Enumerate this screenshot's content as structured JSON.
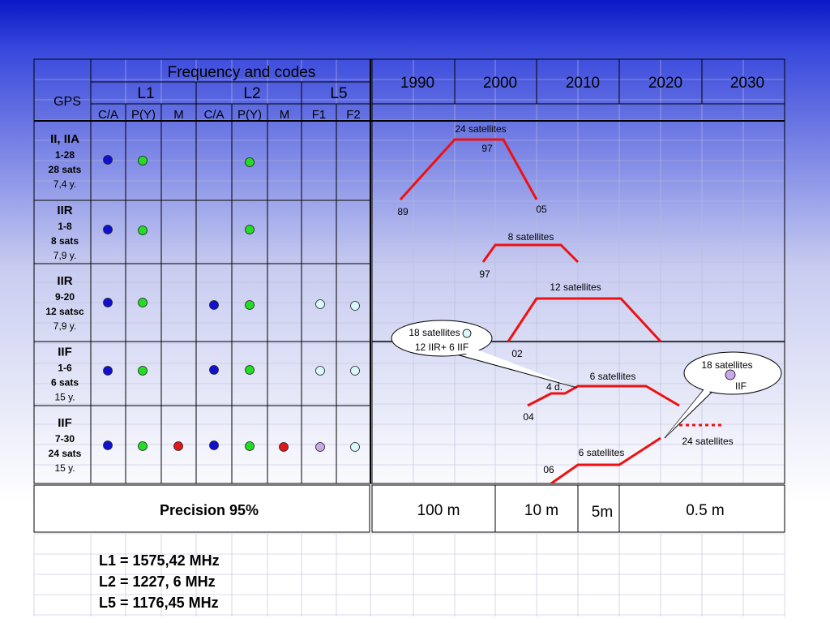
{
  "header": {
    "gps_label": "GPS",
    "freq_title": "Frequency and codes",
    "bands": [
      "L1",
      "L2",
      "L5"
    ],
    "codes": [
      "C/A",
      "P(Y)",
      "M",
      "C/A",
      "P(Y)",
      "M",
      "F1",
      "F2"
    ],
    "years": [
      "1990",
      "2000",
      "2010",
      "2020",
      "2030"
    ]
  },
  "rows": [
    {
      "name": "II, IIA",
      "range": "1-28",
      "sats": "28 sats",
      "life": "7,4 y.",
      "signals": [
        "blue",
        "green",
        null,
        null,
        "green",
        null,
        null,
        null
      ]
    },
    {
      "name": "IIR",
      "range": "1-8",
      "sats": "8 sats",
      "life": "7,9 y.",
      "signals": [
        "blue",
        "green",
        null,
        null,
        "green",
        null,
        null,
        null
      ]
    },
    {
      "name": "IIR",
      "range": "9-20",
      "sats": "12 satsc",
      "life": "7,9 y.",
      "signals": [
        "blue",
        "green",
        null,
        "blue",
        "green",
        null,
        "lightcyan",
        "lightcyan"
      ]
    },
    {
      "name": "IIF",
      "range": "1-6",
      "sats": "6 sats",
      "life": "15 y.",
      "signals": [
        "blue",
        "green",
        null,
        "blue",
        "green",
        null,
        "lightcyan",
        "lightcyan"
      ]
    },
    {
      "name": "IIF",
      "range": "7-30",
      "sats": "24 sats",
      "life": "15 y.",
      "signals": [
        "blue",
        "green",
        "red",
        "blue",
        "green",
        "red",
        "lavender",
        "lightcyan"
      ]
    }
  ],
  "precision": {
    "label": "Precision 95%",
    "values": [
      "100 m",
      "10 m",
      "5m",
      "0.5 m"
    ]
  },
  "timeline_labels": [
    {
      "text": "24 satellites"
    },
    {
      "text": "97"
    },
    {
      "text": "89"
    },
    {
      "text": "05"
    },
    {
      "text": "8 satellites"
    },
    {
      "text": "97"
    },
    {
      "text": "12 satellites"
    },
    {
      "text": "02"
    },
    {
      "text": "4 d."
    },
    {
      "text": "6 satellites"
    },
    {
      "text": "04"
    },
    {
      "text": "6 satellites"
    },
    {
      "text": "06"
    },
    {
      "text": "24 satellites"
    }
  ],
  "callouts": [
    {
      "line1": "18 satellites",
      "line2": "12 IIR+  6 IIF"
    },
    {
      "line1": "18 satellites",
      "line2": "IIF"
    }
  ],
  "frequencies": [
    "L1 = 1575,42 MHz",
    "L2 = 1227, 6 MHz",
    "L5 = 1176,45 MHz"
  ],
  "colors": {
    "blue": "#1010d0",
    "green": "#22dd22",
    "red": "#e01818",
    "lightcyan": "#d8fafa",
    "lavender": "#c8a8e8",
    "timeline": "#ee1111"
  }
}
